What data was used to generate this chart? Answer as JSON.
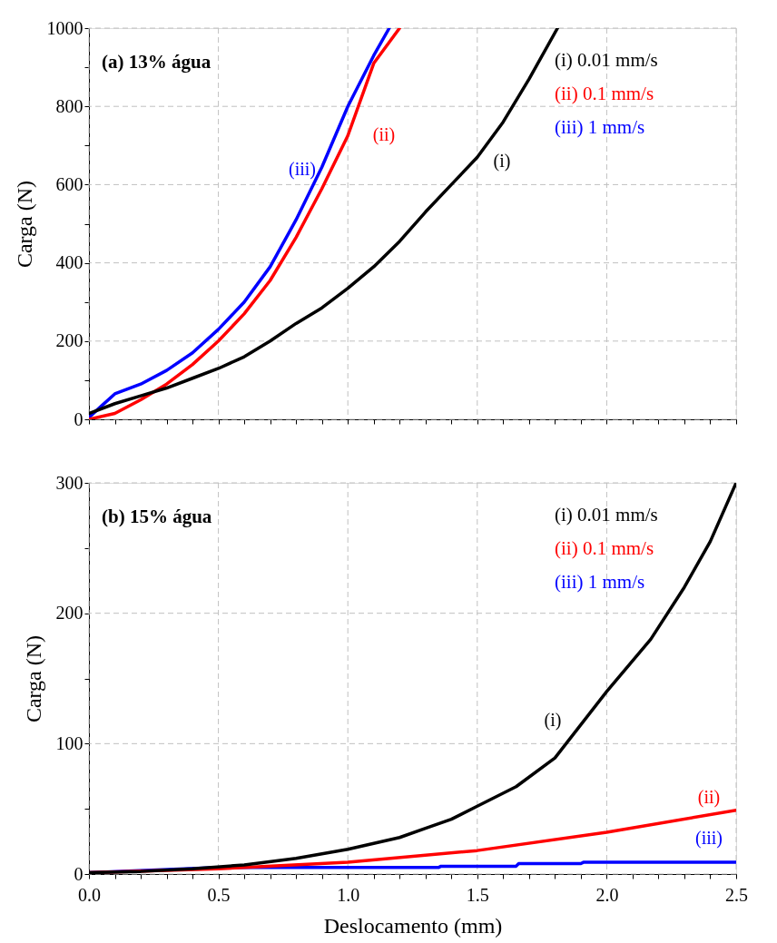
{
  "chart_data": [
    {
      "type": "line",
      "title": "(a) 13% água",
      "ylabel": "Carga (N)",
      "xlim": [
        0,
        2.5
      ],
      "ylim": [
        0,
        1000
      ],
      "xticks": [
        {
          "value": 0,
          "label": null
        },
        {
          "value": 0.1,
          "label": null
        },
        {
          "value": 0.2,
          "label": null
        },
        {
          "value": 0.3,
          "label": null
        },
        {
          "value": 0.4,
          "label": null
        },
        {
          "value": 0.5,
          "label": null
        },
        {
          "value": 0.6,
          "label": null
        },
        {
          "value": 0.7,
          "label": null
        },
        {
          "value": 0.8,
          "label": null
        },
        {
          "value": 0.9,
          "label": null
        },
        {
          "value": 1.0,
          "label": null
        },
        {
          "value": 1.1,
          "label": null
        },
        {
          "value": 1.2,
          "label": null
        },
        {
          "value": 1.3,
          "label": null
        },
        {
          "value": 1.4,
          "label": null
        },
        {
          "value": 1.5,
          "label": null
        },
        {
          "value": 1.6,
          "label": null
        },
        {
          "value": 1.7,
          "label": null
        },
        {
          "value": 1.8,
          "label": null
        },
        {
          "value": 1.9,
          "label": null
        },
        {
          "value": 2.0,
          "label": null
        },
        {
          "value": 2.1,
          "label": null
        },
        {
          "value": 2.2,
          "label": null
        },
        {
          "value": 2.3,
          "label": null
        },
        {
          "value": 2.4,
          "label": null
        },
        {
          "value": 2.5,
          "label": null
        }
      ],
      "yticks": [
        0,
        {
          "value": 100,
          "label": null
        },
        200,
        {
          "value": 300,
          "label": null
        },
        400,
        {
          "value": 500,
          "label": null
        },
        600,
        {
          "value": 700,
          "label": null
        },
        800,
        {
          "value": 900,
          "label": null
        },
        1000
      ],
      "tick_labels": "y",
      "grid": true,
      "legend": "top right",
      "line_style": "solid",
      "marker": "none",
      "series": [
        {
          "name": "(i) 0.01 mm/s",
          "color": "#000000",
          "x": [
            0,
            0.1,
            0.2,
            0.3,
            0.4,
            0.5,
            0.6,
            0.7,
            0.8,
            0.9,
            1.0,
            1.1,
            1.2,
            1.3,
            1.4,
            1.5,
            1.6,
            1.7,
            1.81
          ],
          "values": [
            15,
            40,
            60,
            80,
            105,
            130,
            160,
            200,
            245,
            285,
            335,
            390,
            455,
            530,
            600,
            670,
            760,
            870,
            1000
          ]
        },
        {
          "name": "(ii) 0.1 mm/s",
          "color": "#ff0000",
          "x": [
            0,
            0.1,
            0.2,
            0.3,
            0.4,
            0.5,
            0.6,
            0.7,
            0.8,
            0.9,
            1.0,
            1.1,
            1.2
          ],
          "values": [
            0,
            15,
            50,
            90,
            140,
            200,
            270,
            355,
            465,
            590,
            725,
            910,
            1000
          ]
        },
        {
          "name": "(iii) 1 mm/s",
          "color": "#0000ff",
          "x": [
            0,
            0.05,
            0.1,
            0.2,
            0.3,
            0.4,
            0.5,
            0.6,
            0.7,
            0.8,
            0.9,
            1.0,
            1.1,
            1.16
          ],
          "values": [
            5,
            35,
            65,
            90,
            125,
            170,
            230,
            300,
            390,
            510,
            645,
            800,
            930,
            1000
          ]
        }
      ],
      "annotations": [
        "(i)",
        "(ii)",
        "(iii)"
      ]
    },
    {
      "type": "line",
      "title": "(b) 15% água",
      "xlabel": "Deslocamento (mm)",
      "ylabel": "Carga (N)",
      "xlim": [
        0,
        2.5
      ],
      "ylim": [
        0,
        300
      ],
      "xticks": [
        {
          "value": 0,
          "label": "0.0"
        },
        {
          "value": 0.1,
          "label": null
        },
        {
          "value": 0.2,
          "label": null
        },
        {
          "value": 0.3,
          "label": null
        },
        {
          "value": 0.4,
          "label": null
        },
        {
          "value": 0.5,
          "label": "0.5"
        },
        {
          "value": 0.6,
          "label": null
        },
        {
          "value": 0.7,
          "label": null
        },
        {
          "value": 0.8,
          "label": null
        },
        {
          "value": 0.9,
          "label": null
        },
        {
          "value": 1.0,
          "label": "1.0"
        },
        {
          "value": 1.1,
          "label": null
        },
        {
          "value": 1.2,
          "label": null
        },
        {
          "value": 1.3,
          "label": null
        },
        {
          "value": 1.4,
          "label": null
        },
        {
          "value": 1.5,
          "label": "1.5"
        },
        {
          "value": 1.6,
          "label": null
        },
        {
          "value": 1.7,
          "label": null
        },
        {
          "value": 1.8,
          "label": null
        },
        {
          "value": 1.9,
          "label": null
        },
        {
          "value": 2.0,
          "label": "2.0"
        },
        {
          "value": 2.1,
          "label": null
        },
        {
          "value": 2.2,
          "label": null
        },
        {
          "value": 2.3,
          "label": null
        },
        {
          "value": 2.4,
          "label": null
        },
        {
          "value": 2.5,
          "label": "2.5"
        }
      ],
      "yticks": [
        0,
        {
          "value": 50,
          "label": null
        },
        100,
        {
          "value": 150,
          "label": null
        },
        200,
        {
          "value": 250,
          "label": null
        },
        300
      ],
      "grid": true,
      "legend": "top right",
      "line_style": "solid",
      "marker": "none",
      "series": [
        {
          "name": "(i) 0.01 mm/s",
          "color": "#000000",
          "x": [
            0,
            0.2,
            0.4,
            0.6,
            0.8,
            1.0,
            1.2,
            1.3,
            1.4,
            1.5,
            1.65,
            1.8,
            2.0,
            2.17,
            2.3,
            2.4,
            2.5
          ],
          "values": [
            1,
            2,
            4,
            7,
            12,
            19,
            28,
            35,
            42,
            52,
            67,
            89,
            140,
            180,
            220,
            255,
            300
          ]
        },
        {
          "name": "(ii) 0.1 mm/s",
          "color": "#ff0000",
          "x": [
            0,
            0.5,
            1.0,
            1.5,
            2.0,
            2.5
          ],
          "values": [
            1,
            4,
            9,
            18,
            32,
            49
          ]
        },
        {
          "name": "(iii) 1 mm/s",
          "color": "#0000ff",
          "x": [
            0,
            0.5,
            1.35,
            1.36,
            1.65,
            1.66,
            1.9,
            1.91,
            2.5
          ],
          "values": [
            1,
            5,
            5,
            6,
            6,
            8,
            8,
            9,
            9
          ]
        }
      ],
      "annotations": [
        "(i)",
        "(ii)",
        "(iii)"
      ]
    }
  ]
}
